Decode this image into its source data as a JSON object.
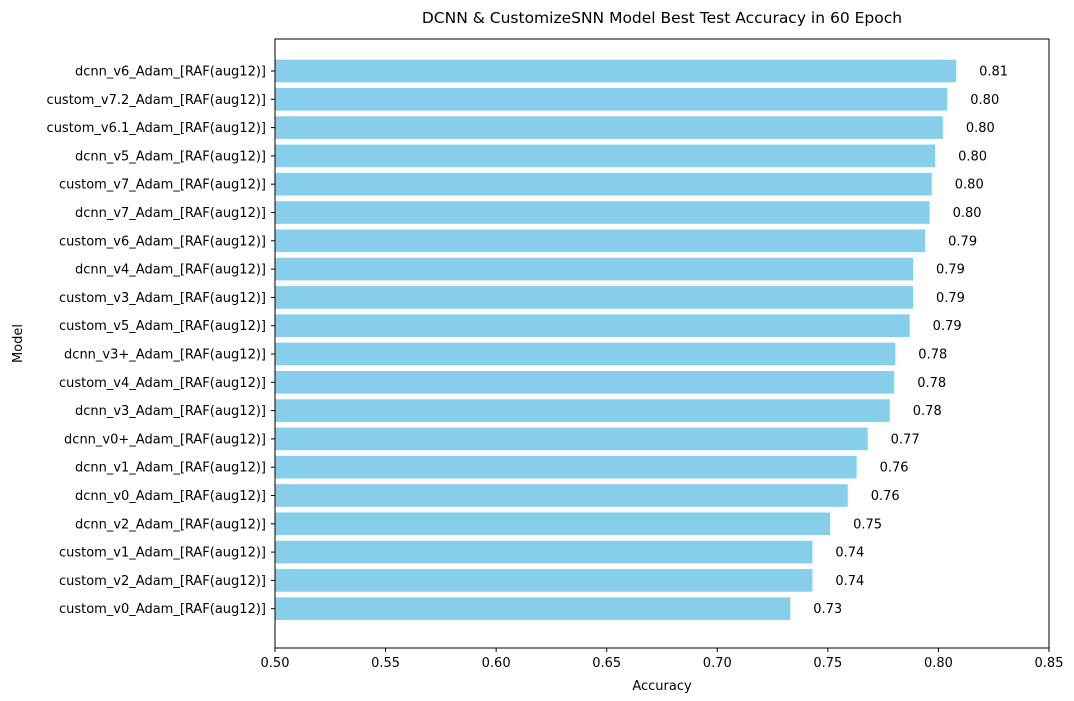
{
  "chart_data": {
    "type": "bar",
    "orientation": "horizontal",
    "title": "DCNN & CustomizeSNN Model Best Test Accuracy in 60 Epoch",
    "xlabel": "Accuracy",
    "ylabel": "Model",
    "xlim": [
      0.5,
      0.85
    ],
    "xticks": [
      "0.50",
      "0.55",
      "0.60",
      "0.65",
      "0.70",
      "0.75",
      "0.80",
      "0.85"
    ],
    "bar_color": "#87CEEB",
    "grid": false,
    "legend": "none",
    "categories": [
      "dcnn_v6_Adam_[RAF(aug12)]",
      "custom_v7.2_Adam_[RAF(aug12)]",
      "custom_v6.1_Adam_[RAF(aug12)]",
      "dcnn_v5_Adam_[RAF(aug12)]",
      "custom_v7_Adam_[RAF(aug12)]",
      "dcnn_v7_Adam_[RAF(aug12)]",
      "custom_v6_Adam_[RAF(aug12)]",
      "dcnn_v4_Adam_[RAF(aug12)]",
      "custom_v3_Adam_[RAF(aug12)]",
      "custom_v5_Adam_[RAF(aug12)]",
      "dcnn_v3+_Adam_[RAF(aug12)]",
      "custom_v4_Adam_[RAF(aug12)]",
      "dcnn_v3_Adam_[RAF(aug12)]",
      "dcnn_v0+_Adam_[RAF(aug12)]",
      "dcnn_v1_Adam_[RAF(aug12)]",
      "dcnn_v0_Adam_[RAF(aug12)]",
      "dcnn_v2_Adam_[RAF(aug12)]",
      "custom_v1_Adam_[RAF(aug12)]",
      "custom_v2_Adam_[RAF(aug12)]",
      "custom_v0_Adam_[RAF(aug12)]"
    ],
    "values": [
      0.808,
      0.804,
      0.802,
      0.7985,
      0.797,
      0.796,
      0.794,
      0.7885,
      0.7885,
      0.787,
      0.7805,
      0.78,
      0.778,
      0.768,
      0.763,
      0.759,
      0.751,
      0.743,
      0.743,
      0.733
    ],
    "value_labels": [
      "0.81",
      "0.80",
      "0.80",
      "0.80",
      "0.80",
      "0.80",
      "0.79",
      "0.79",
      "0.79",
      "0.79",
      "0.78",
      "0.78",
      "0.78",
      "0.77",
      "0.76",
      "0.76",
      "0.75",
      "0.74",
      "0.74",
      "0.73"
    ]
  }
}
